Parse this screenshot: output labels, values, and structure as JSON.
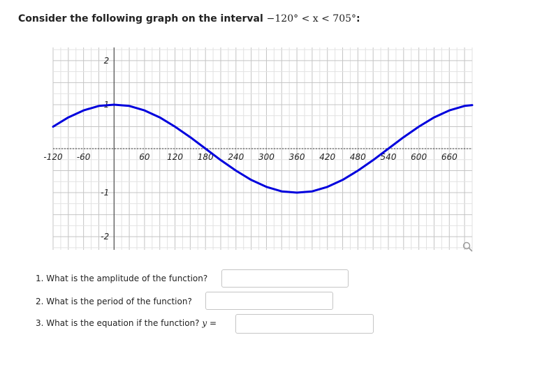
{
  "problem": {
    "prefix": "Consider the following graph on the interval",
    "interval": "−120° < x < 705°",
    "suffix": ":"
  },
  "chart_data": {
    "type": "line",
    "x_ticks": [
      -120,
      -60,
      60,
      120,
      180,
      240,
      300,
      360,
      420,
      480,
      540,
      600,
      660
    ],
    "x_tick_labels": [
      "-120",
      "-60",
      "60",
      "120",
      "180",
      "240",
      "300",
      "360",
      "420",
      "480",
      "540",
      "600",
      "660"
    ],
    "y_ticks": [
      2,
      1,
      -1,
      -2
    ],
    "y_tick_labels": [
      "2",
      "1",
      "-1",
      "-2"
    ],
    "xlim": [
      -120,
      705
    ],
    "ylim": [
      -2.3,
      2.3
    ],
    "grid": true,
    "series_color": "#0000dd",
    "series": [
      {
        "x": [
          -120,
          -90,
          -60,
          -30,
          0,
          30,
          60,
          90,
          120,
          150,
          180,
          210,
          240,
          270,
          300,
          330,
          360,
          390,
          420,
          450,
          480,
          510,
          540,
          570,
          600,
          630,
          660,
          690,
          705
        ],
        "y": [
          0.5,
          0.71,
          0.87,
          0.97,
          1.0,
          0.97,
          0.87,
          0.71,
          0.5,
          0.26,
          0.0,
          -0.26,
          -0.5,
          -0.71,
          -0.87,
          -0.97,
          -1.0,
          -0.97,
          -0.87,
          -0.71,
          -0.5,
          -0.26,
          0.0,
          0.26,
          0.5,
          0.71,
          0.87,
          0.97,
          0.99
        ]
      }
    ]
  },
  "zoom_icon": "magnifier-icon",
  "questions": [
    {
      "label": "1. What is the amplitude of the function?"
    },
    {
      "label": "2. What is the period of the function?"
    },
    {
      "label": "3. What is the equation if the function?",
      "math": "y ="
    }
  ]
}
